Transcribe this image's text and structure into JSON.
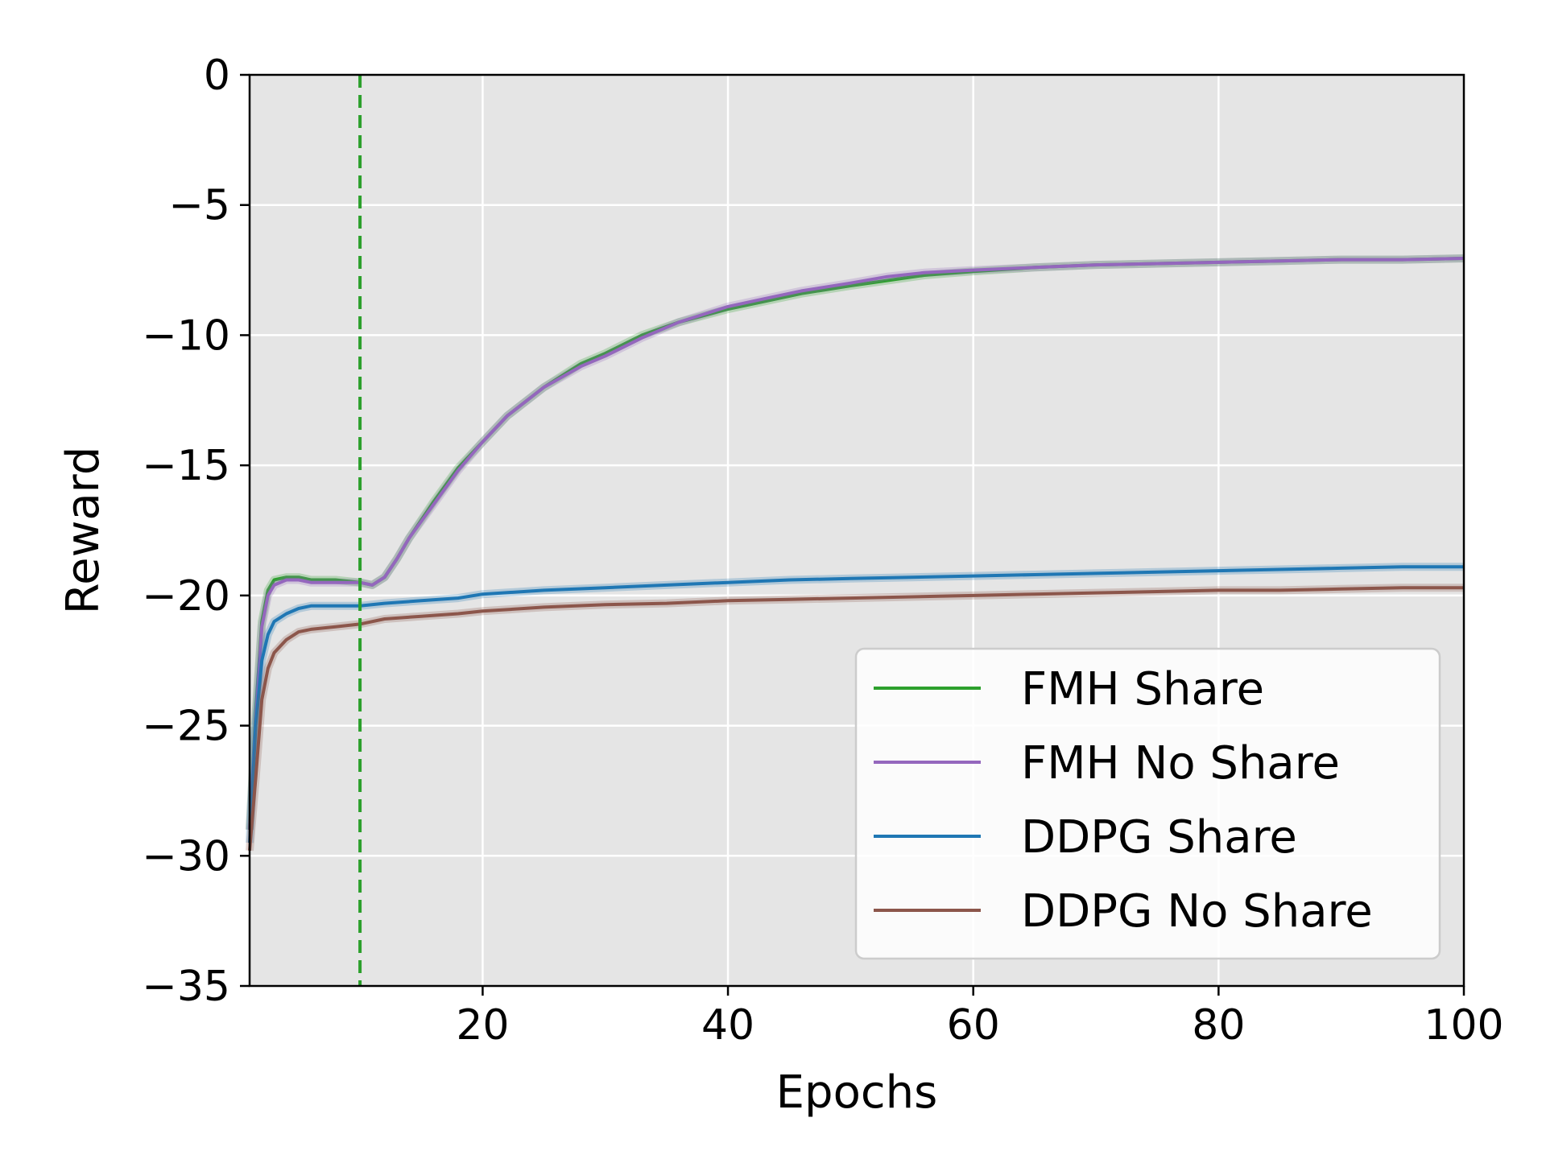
{
  "chart_data": {
    "type": "line",
    "title": "",
    "xlabel": "Epochs",
    "ylabel": "Reward",
    "xlim": [
      1,
      100
    ],
    "ylim": [
      -35,
      0
    ],
    "x_ticks": [
      20,
      40,
      60,
      80,
      100
    ],
    "x_tick_labels": [
      "20",
      "40",
      "60",
      "80",
      "100"
    ],
    "y_ticks": [
      0,
      -5,
      -10,
      -15,
      -20,
      -25,
      -30,
      -35
    ],
    "y_tick_labels": [
      "0",
      "−5",
      "−10",
      "−15",
      "−20",
      "−25",
      "−30",
      "−35"
    ],
    "grid": true,
    "background": "#e5e5e5",
    "legend_position": "lower-right",
    "vline": {
      "x": 10,
      "style": "dashed",
      "color": "#2ca02c"
    },
    "series": [
      {
        "name": "FMH Share",
        "color": "#2ca02c",
        "x": [
          1,
          1.5,
          2,
          2.5,
          3,
          4,
          5,
          6,
          8,
          10,
          11,
          12,
          13,
          14,
          16,
          18,
          20,
          22,
          25,
          28,
          30,
          33,
          36,
          40,
          43,
          46,
          50,
          53,
          56,
          60,
          65,
          70,
          75,
          80,
          85,
          90,
          95,
          100
        ],
        "y": [
          -29.0,
          -24.5,
          -21.0,
          -19.8,
          -19.4,
          -19.3,
          -19.3,
          -19.4,
          -19.4,
          -19.5,
          -19.6,
          -19.3,
          -18.6,
          -17.8,
          -16.4,
          -15.1,
          -14.1,
          -13.1,
          -12.0,
          -11.1,
          -10.7,
          -10.0,
          -9.5,
          -9.0,
          -8.7,
          -8.4,
          -8.1,
          -7.9,
          -7.7,
          -7.55,
          -7.4,
          -7.3,
          -7.25,
          -7.2,
          -7.15,
          -7.1,
          -7.1,
          -7.05
        ]
      },
      {
        "name": "FMH No Share",
        "color": "#9467bd",
        "x": [
          1,
          1.5,
          2,
          2.5,
          3,
          4,
          5,
          6,
          8,
          10,
          11,
          12,
          13,
          14,
          16,
          18,
          20,
          22,
          25,
          28,
          30,
          33,
          36,
          40,
          43,
          46,
          50,
          53,
          56,
          60,
          65,
          70,
          75,
          80,
          85,
          90,
          95,
          100
        ],
        "y": [
          -29.0,
          -24.8,
          -21.2,
          -20.0,
          -19.6,
          -19.4,
          -19.4,
          -19.5,
          -19.5,
          -19.5,
          -19.6,
          -19.3,
          -18.6,
          -17.8,
          -16.5,
          -15.2,
          -14.1,
          -13.1,
          -12.0,
          -11.2,
          -10.8,
          -10.1,
          -9.5,
          -8.9,
          -8.6,
          -8.3,
          -8.0,
          -7.75,
          -7.6,
          -7.5,
          -7.4,
          -7.3,
          -7.25,
          -7.2,
          -7.15,
          -7.1,
          -7.1,
          -7.05
        ]
      },
      {
        "name": "DDPG Share",
        "color": "#1f77b4",
        "x": [
          1,
          1.5,
          2,
          2.5,
          3,
          4,
          5,
          6,
          8,
          10,
          12,
          15,
          18,
          20,
          25,
          30,
          35,
          40,
          45,
          50,
          55,
          60,
          65,
          70,
          75,
          80,
          85,
          90,
          95,
          100
        ],
        "y": [
          -29.5,
          -25.0,
          -22.5,
          -21.5,
          -21.0,
          -20.7,
          -20.5,
          -20.4,
          -20.4,
          -20.4,
          -20.3,
          -20.2,
          -20.1,
          -19.95,
          -19.8,
          -19.7,
          -19.6,
          -19.5,
          -19.4,
          -19.35,
          -19.3,
          -19.25,
          -19.2,
          -19.15,
          -19.1,
          -19.05,
          -19.0,
          -18.95,
          -18.9,
          -18.9
        ]
      },
      {
        "name": "DDPG No Share",
        "color": "#8c564b",
        "x": [
          1,
          1.5,
          2,
          2.5,
          3,
          4,
          5,
          6,
          8,
          10,
          12,
          15,
          18,
          20,
          25,
          30,
          35,
          40,
          45,
          50,
          55,
          60,
          65,
          70,
          75,
          80,
          85,
          90,
          95,
          100
        ],
        "y": [
          -29.8,
          -27.0,
          -24.0,
          -22.8,
          -22.2,
          -21.7,
          -21.4,
          -21.3,
          -21.2,
          -21.1,
          -20.9,
          -20.8,
          -20.7,
          -20.6,
          -20.45,
          -20.35,
          -20.3,
          -20.2,
          -20.15,
          -20.1,
          -20.05,
          -20.0,
          -19.95,
          -19.9,
          -19.85,
          -19.8,
          -19.8,
          -19.75,
          -19.7,
          -19.7
        ]
      }
    ]
  }
}
